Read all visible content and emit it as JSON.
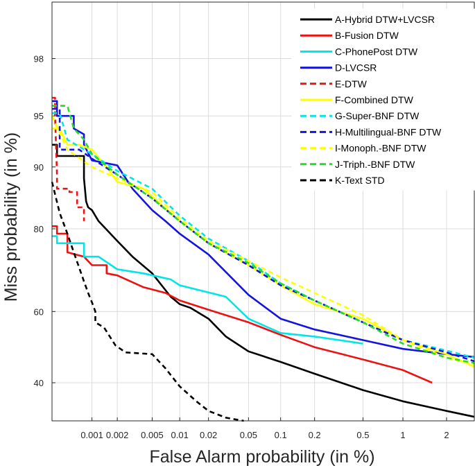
{
  "chart_data": {
    "type": "line",
    "title": "",
    "xlabel": "False Alarm probability (in %)",
    "ylabel": "Miss probability (in %)",
    "x_ticks": [
      "0.001",
      "0.002",
      "0.005",
      "0.01",
      "0.02",
      "0.05",
      "0.1",
      "0.2",
      "0.5",
      "1",
      "2"
    ],
    "y_ticks": [
      "40",
      "60",
      "80",
      "90",
      "95",
      "98"
    ],
    "series": [
      {
        "name": "A-Hybrid DTW+LVCSR",
        "color": "#000000",
        "dash": false,
        "points": [
          [
            0.00032,
            92.5
          ],
          [
            0.00037,
            92.5
          ],
          [
            0.00037,
            91.3
          ],
          [
            0.0008,
            91.3
          ],
          [
            0.0008,
            88.5
          ],
          [
            0.00085,
            85
          ],
          [
            0.0009,
            84
          ],
          [
            0.001,
            83.5
          ],
          [
            0.0012,
            81.5
          ],
          [
            0.002,
            77.5
          ],
          [
            0.003,
            74
          ],
          [
            0.005,
            70
          ],
          [
            0.008,
            64
          ],
          [
            0.01,
            62
          ],
          [
            0.013,
            61
          ],
          [
            0.02,
            58
          ],
          [
            0.03,
            53
          ],
          [
            0.05,
            48.8
          ],
          [
            0.1,
            45.8
          ],
          [
            0.2,
            42.5
          ],
          [
            0.5,
            38
          ],
          [
            1,
            35
          ],
          [
            2,
            32.5
          ],
          [
            3,
            31
          ]
        ]
      },
      {
        "name": "B-Fusion DTW",
        "color": "#ee1111",
        "dash": false,
        "points": [
          [
            0.00032,
            80.5
          ],
          [
            0.00037,
            80.5
          ],
          [
            0.00037,
            79
          ],
          [
            0.0005,
            79
          ],
          [
            0.0005,
            75
          ],
          [
            0.0008,
            74
          ],
          [
            0.001,
            72
          ],
          [
            0.0015,
            72
          ],
          [
            0.0015,
            70
          ],
          [
            0.002,
            69.5
          ],
          [
            0.004,
            66.5
          ],
          [
            0.007,
            65
          ],
          [
            0.01,
            63
          ],
          [
            0.02,
            60.5
          ],
          [
            0.05,
            57
          ],
          [
            0.1,
            53.5
          ],
          [
            0.2,
            50
          ],
          [
            0.5,
            46.5
          ],
          [
            1,
            43.5
          ],
          [
            1.6,
            40
          ]
        ]
      },
      {
        "name": "C-PhonePost DTW",
        "color": "#00e5e5",
        "dash": false,
        "points": [
          [
            0.00032,
            78.5
          ],
          [
            0.00037,
            78.5
          ],
          [
            0.00037,
            77
          ],
          [
            0.0008,
            77
          ],
          [
            0.0008,
            74
          ],
          [
            0.0012,
            74
          ],
          [
            0.002,
            71
          ],
          [
            0.004,
            70
          ],
          [
            0.008,
            68.5
          ],
          [
            0.01,
            67
          ],
          [
            0.03,
            64
          ],
          [
            0.05,
            58
          ],
          [
            0.1,
            54
          ],
          [
            0.2,
            53
          ],
          [
            0.5,
            51
          ]
        ]
      },
      {
        "name": "D-LVCSR",
        "color": "#1414e0",
        "dash": false,
        "points": [
          [
            0.00032,
            96
          ],
          [
            0.00037,
            96
          ],
          [
            0.00037,
            95
          ],
          [
            0.0006,
            95
          ],
          [
            0.0006,
            94
          ],
          [
            0.0008,
            93.5
          ],
          [
            0.0008,
            92.5
          ],
          [
            0.001,
            90.8
          ],
          [
            0.002,
            90.2
          ],
          [
            0.003,
            87
          ],
          [
            0.005,
            83.5
          ],
          [
            0.007,
            81.5
          ],
          [
            0.01,
            79
          ],
          [
            0.02,
            74.5
          ],
          [
            0.05,
            64.5
          ],
          [
            0.1,
            58
          ],
          [
            0.2,
            55
          ],
          [
            0.5,
            52
          ],
          [
            1,
            49.5
          ],
          [
            2,
            48
          ],
          [
            3,
            47.2
          ]
        ]
      },
      {
        "name": "E-DTW",
        "color": "#ee1111",
        "dash": true,
        "points": [
          [
            0.00032,
            96.2
          ],
          [
            0.00035,
            96.2
          ],
          [
            0.00035,
            95
          ],
          [
            0.00037,
            89
          ],
          [
            0.00037,
            87
          ],
          [
            0.00053,
            87
          ],
          [
            0.00053,
            86.5
          ],
          [
            0.00066,
            86.5
          ],
          [
            0.00066,
            84
          ],
          [
            0.0008,
            84
          ],
          [
            0.0008,
            81.5
          ]
        ]
      },
      {
        "name": "F-Combined DTW",
        "color": "#ffff00",
        "dash": false,
        "points": [
          [
            0.00032,
            94
          ],
          [
            0.0004,
            94
          ],
          [
            0.0005,
            92.5
          ],
          [
            0.0007,
            92.5
          ],
          [
            0.001,
            92
          ],
          [
            0.0015,
            90
          ],
          [
            0.002,
            88
          ],
          [
            0.004,
            87
          ],
          [
            0.01,
            81.5
          ],
          [
            0.02,
            77
          ],
          [
            0.05,
            72
          ],
          [
            0.1,
            67
          ],
          [
            0.2,
            62
          ],
          [
            0.5,
            58
          ],
          [
            1,
            52
          ],
          [
            2,
            48
          ],
          [
            3,
            44.5
          ]
        ]
      },
      {
        "name": "G-Super-BNF DTW",
        "color": "#00e5e5",
        "dash": true,
        "points": [
          [
            0.00032,
            95.2
          ],
          [
            0.0004,
            95.2
          ],
          [
            0.0005,
            93
          ],
          [
            0.001,
            91.5
          ],
          [
            0.002,
            89.5
          ],
          [
            0.005,
            87
          ],
          [
            0.01,
            82.5
          ],
          [
            0.02,
            78
          ],
          [
            0.05,
            73
          ],
          [
            0.1,
            67.5
          ],
          [
            0.2,
            63
          ],
          [
            0.5,
            57
          ],
          [
            1,
            52
          ],
          [
            2,
            49
          ],
          [
            3,
            47
          ]
        ]
      },
      {
        "name": "H-Multilingual-BNF DTW",
        "color": "#1414e0",
        "dash": true,
        "points": [
          [
            0.00032,
            95.5
          ],
          [
            0.0004,
            95.5
          ],
          [
            0.0004,
            92
          ],
          [
            0.0007,
            92
          ],
          [
            0.001,
            91
          ],
          [
            0.002,
            89
          ],
          [
            0.005,
            85.5
          ],
          [
            0.01,
            81.5
          ],
          [
            0.02,
            77
          ],
          [
            0.05,
            72
          ],
          [
            0.1,
            67
          ],
          [
            0.2,
            63
          ],
          [
            0.5,
            57
          ],
          [
            1,
            52
          ],
          [
            2,
            48.5
          ],
          [
            3,
            46
          ]
        ]
      },
      {
        "name": "I-Monoph.-BNF DTW",
        "color": "#ffff00",
        "dash": true,
        "points": [
          [
            0.00032,
            95
          ],
          [
            0.0005,
            92
          ],
          [
            0.001,
            90
          ],
          [
            0.002,
            88.5
          ],
          [
            0.005,
            86.5
          ],
          [
            0.01,
            82
          ],
          [
            0.02,
            77.5
          ],
          [
            0.05,
            73
          ],
          [
            0.1,
            69
          ],
          [
            0.2,
            65
          ],
          [
            0.5,
            59
          ],
          [
            1,
            52
          ],
          [
            2,
            47
          ],
          [
            3,
            45
          ]
        ]
      },
      {
        "name": "J-Triph.-BNF DTW",
        "color": "#22dd22",
        "dash": true,
        "points": [
          [
            0.00032,
            95.7
          ],
          [
            0.0005,
            95.7
          ],
          [
            0.0006,
            94
          ],
          [
            0.0008,
            93
          ],
          [
            0.001,
            91.5
          ],
          [
            0.002,
            89
          ],
          [
            0.005,
            85.5
          ],
          [
            0.01,
            81.5
          ],
          [
            0.02,
            77
          ],
          [
            0.05,
            72.5
          ],
          [
            0.1,
            67.5
          ],
          [
            0.2,
            63
          ],
          [
            0.5,
            57
          ],
          [
            1,
            51
          ],
          [
            2,
            47
          ],
          [
            3,
            45.5
          ]
        ]
      },
      {
        "name": "K-Text STD",
        "color": "#000000",
        "dash": true,
        "points": [
          [
            0.00032,
            88
          ],
          [
            0.0004,
            83
          ],
          [
            0.0005,
            79
          ],
          [
            0.0006,
            75
          ],
          [
            0.0008,
            68
          ],
          [
            0.0009,
            65
          ],
          [
            0.001,
            62.5
          ],
          [
            0.0011,
            60
          ],
          [
            0.0011,
            57
          ],
          [
            0.0014,
            55.5
          ],
          [
            0.0019,
            50.5
          ],
          [
            0.0025,
            48.5
          ],
          [
            0.005,
            48
          ],
          [
            0.007,
            44
          ],
          [
            0.01,
            39
          ],
          [
            0.015,
            35
          ],
          [
            0.02,
            32.5
          ],
          [
            0.03,
            30.8
          ],
          [
            0.045,
            30
          ]
        ]
      }
    ]
  }
}
